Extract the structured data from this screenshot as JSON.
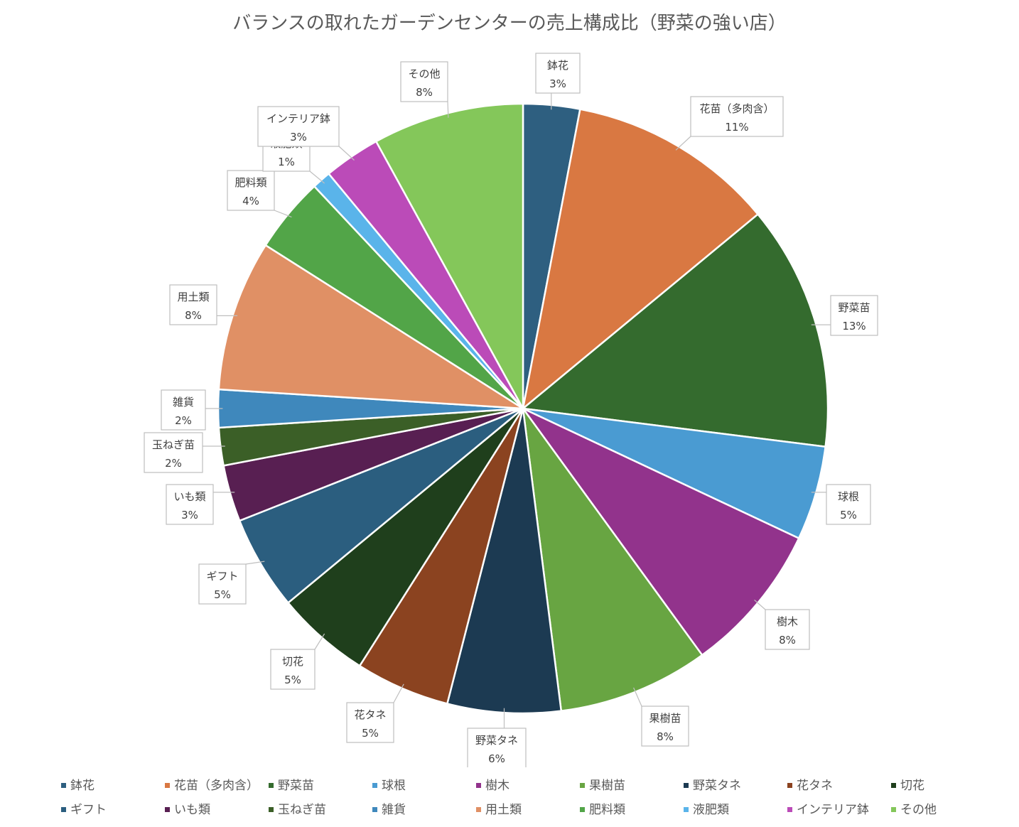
{
  "chart_data": {
    "type": "pie",
    "title": "バランスの取れたガーデンセンターの売上構成比（野菜の強い店）",
    "legend_position": "bottom",
    "slices": [
      {
        "label": "鉢花",
        "value": 3,
        "pct_label": "3%",
        "color": "#2E5F80"
      },
      {
        "label": "花苗（多肉含）",
        "value": 11,
        "pct_label": "11%",
        "color": "#D97842"
      },
      {
        "label": "野菜苗",
        "value": 13,
        "pct_label": "13%",
        "color": "#346B2E"
      },
      {
        "label": "球根",
        "value": 5,
        "pct_label": "5%",
        "color": "#4A9BD2"
      },
      {
        "label": "樹木",
        "value": 8,
        "pct_label": "8%",
        "color": "#92338C"
      },
      {
        "label": "果樹苗",
        "value": 8,
        "pct_label": "8%",
        "color": "#68A542"
      },
      {
        "label": "野菜タネ",
        "value": 6,
        "pct_label": "6%",
        "color": "#1C3A52"
      },
      {
        "label": "花タネ",
        "value": 5,
        "pct_label": "5%",
        "color": "#8B4320"
      },
      {
        "label": "切花",
        "value": 5,
        "pct_label": "5%",
        "color": "#1F3F1C"
      },
      {
        "label": "ギフト",
        "value": 5,
        "pct_label": "5%",
        "color": "#2B5E7F"
      },
      {
        "label": "いも類",
        "value": 3,
        "pct_label": "3%",
        "color": "#581F52"
      },
      {
        "label": "玉ねぎ苗",
        "value": 2,
        "pct_label": "2%",
        "color": "#3B5F27"
      },
      {
        "label": "雑貨",
        "value": 2,
        "pct_label": "2%",
        "color": "#3F88BC"
      },
      {
        "label": "用土類",
        "value": 8,
        "pct_label": "8%",
        "color": "#E09065"
      },
      {
        "label": "肥料類",
        "value": 4,
        "pct_label": "4%",
        "color": "#52A548"
      },
      {
        "label": "液肥類",
        "value": 1,
        "pct_label": "1%",
        "color": "#5AB4EA"
      },
      {
        "label": "インテリア鉢",
        "value": 3,
        "pct_label": "3%",
        "color": "#BB4BB8"
      },
      {
        "label": "その他",
        "value": 8,
        "pct_label": "8%",
        "color": "#84C75A"
      }
    ]
  }
}
